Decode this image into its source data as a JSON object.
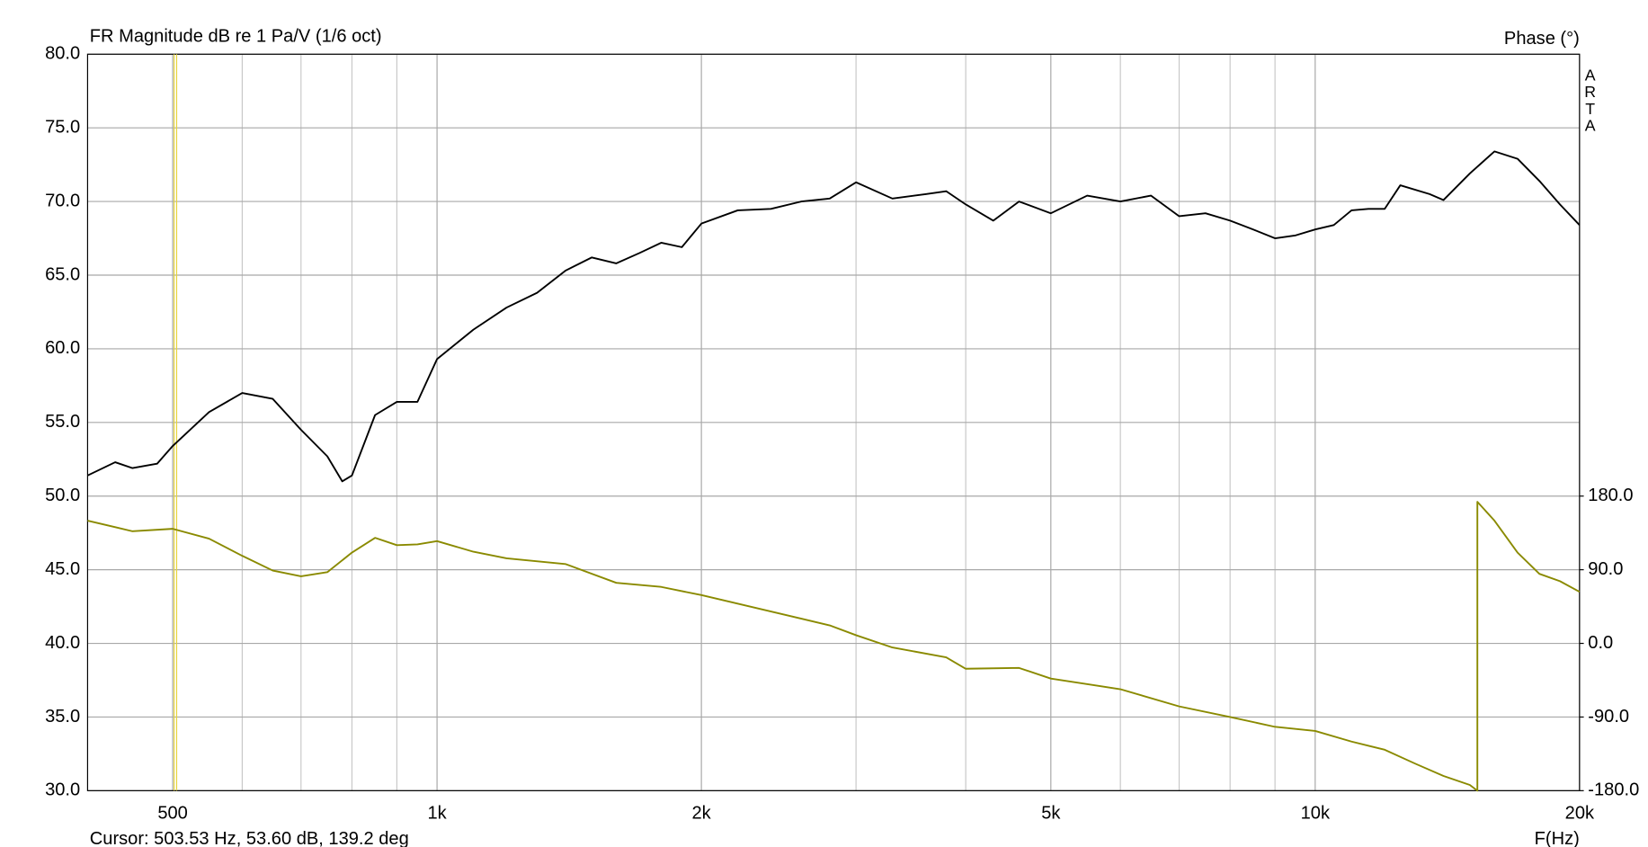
{
  "chart_data": {
    "type": "line",
    "title": "FR Magnitude dB re 1 Pa/V (1/6 oct)",
    "y2label": "Phase (°)",
    "xlabel": "F(Hz)",
    "watermark": "ARTA",
    "xscale": "log",
    "grid": true,
    "xlim": [
      400,
      20000
    ],
    "xticks": [
      {
        "value": 500,
        "label": "500"
      },
      {
        "value": 1000,
        "label": "1k"
      },
      {
        "value": 2000,
        "label": "2k"
      },
      {
        "value": 5000,
        "label": "5k"
      },
      {
        "value": 10000,
        "label": "10k"
      },
      {
        "value": 20000,
        "label": "20k"
      }
    ],
    "xminor": [
      600,
      700,
      800,
      900,
      3000,
      4000,
      6000,
      7000,
      8000,
      9000
    ],
    "ylim": [
      30,
      80
    ],
    "yticks": [
      {
        "value": 30,
        "label": "30.0"
      },
      {
        "value": 35,
        "label": "35.0"
      },
      {
        "value": 40,
        "label": "40.0"
      },
      {
        "value": 45,
        "label": "45.0"
      },
      {
        "value": 50,
        "label": "50.0"
      },
      {
        "value": 55,
        "label": "55.0"
      },
      {
        "value": 60,
        "label": "60.0"
      },
      {
        "value": 65,
        "label": "65.0"
      },
      {
        "value": 70,
        "label": "70.0"
      },
      {
        "value": 75,
        "label": "75.0"
      },
      {
        "value": 80,
        "label": "80.0"
      }
    ],
    "y2lim": [
      -180,
      720
    ],
    "y2ticks": [
      {
        "value": -180,
        "label": "-180.0"
      },
      {
        "value": -90,
        "label": "-90.0"
      },
      {
        "value": 0,
        "label": "0.0"
      },
      {
        "value": 90,
        "label": "90.0"
      },
      {
        "value": 180,
        "label": "180.0"
      }
    ],
    "cursor": {
      "x": 503.53,
      "label": "Cursor: 503.53 Hz, 53.60 dB, 139.2 deg",
      "color": "#e6d43c"
    },
    "series": [
      {
        "name": "Magnitude",
        "color": "#000000",
        "x": [
          400,
          430,
          450,
          480,
          500,
          550,
          600,
          650,
          700,
          750,
          780,
          800,
          850,
          900,
          950,
          1000,
          1100,
          1200,
          1300,
          1400,
          1500,
          1600,
          1700,
          1800,
          1900,
          2000,
          2200,
          2400,
          2600,
          2800,
          3000,
          3300,
          3600,
          3800,
          4000,
          4300,
          4600,
          5000,
          5500,
          6000,
          6500,
          7000,
          7500,
          8000,
          8500,
          9000,
          9500,
          10000,
          10500,
          11000,
          11500,
          12000,
          12500,
          13500,
          14000,
          15000,
          16000,
          17000,
          18000,
          19000,
          20000
        ],
        "values": [
          51.4,
          52.3,
          51.9,
          52.2,
          53.4,
          55.7,
          57.0,
          56.6,
          54.5,
          52.7,
          51.0,
          51.4,
          55.5,
          56.4,
          56.4,
          59.3,
          61.3,
          62.8,
          63.8,
          65.3,
          66.2,
          65.8,
          66.5,
          67.2,
          66.9,
          68.5,
          69.4,
          69.5,
          70.0,
          70.2,
          71.3,
          70.2,
          70.5,
          70.7,
          69.8,
          68.7,
          70.0,
          69.2,
          70.4,
          70.0,
          70.4,
          69.0,
          69.2,
          68.7,
          68.1,
          67.5,
          67.7,
          68.1,
          68.4,
          69.4,
          69.5,
          69.5,
          71.1,
          70.5,
          70.1,
          71.9,
          73.4,
          72.9,
          71.4,
          69.8,
          68.4
        ]
      },
      {
        "name": "Phase",
        "color": "#8a8a00",
        "axis": "y2",
        "x": [
          400,
          450,
          500,
          550,
          600,
          650,
          700,
          750,
          800,
          850,
          900,
          950,
          1000,
          1100,
          1200,
          1400,
          1600,
          1800,
          2000,
          2400,
          2800,
          3000,
          3300,
          3800,
          4000,
          4600,
          5000,
          6000,
          7000,
          8000,
          9000,
          10000,
          11000,
          12000,
          13000,
          14000,
          15000,
          15300,
          15300,
          16000,
          17000,
          18000,
          19000,
          20000
        ],
        "values": [
          150,
          137,
          140,
          128,
          107,
          89,
          82,
          87,
          111,
          129,
          120,
          121,
          125,
          112,
          104,
          97,
          74,
          69,
          59,
          39,
          22,
          10,
          -5,
          -17,
          -31,
          -30,
          -43,
          -56,
          -77,
          -90,
          -102,
          -107,
          -120,
          -130,
          -147,
          -162,
          -173,
          -180,
          173,
          150,
          111,
          85,
          76,
          63
        ]
      }
    ]
  }
}
